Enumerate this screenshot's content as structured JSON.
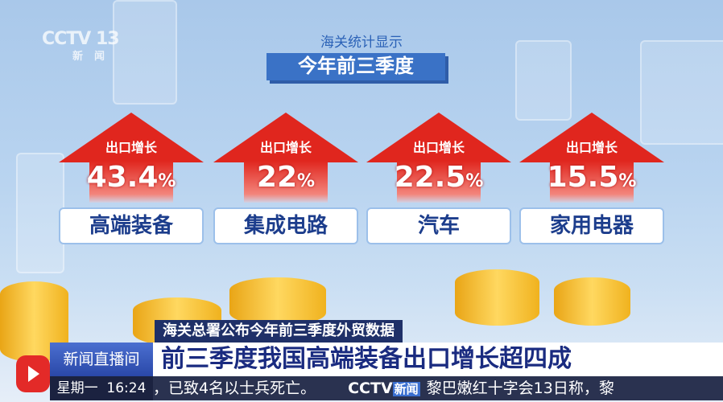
{
  "channel_logo": {
    "text": "CCTV 13",
    "sub": "新闻"
  },
  "header": {
    "line1": "海关统计显示",
    "line2": "今年前三季度"
  },
  "cards": [
    {
      "label": "出口增长",
      "value": "43.4",
      "unit": "%",
      "category": "高端装备"
    },
    {
      "label": "出口增长",
      "value": "22",
      "unit": "%",
      "category": "集成电路"
    },
    {
      "label": "出口增长",
      "value": "22.5",
      "unit": "%",
      "category": "汽车"
    },
    {
      "label": "出口增长",
      "value": "15.5",
      "unit": "%",
      "category": "家用电器"
    }
  ],
  "lower_third": {
    "subtitle": "海关总署公布今年前三季度外贸数据",
    "program": "新闻直播间",
    "headline": "前三季度我国高端装备出口增长超四成",
    "day": "星期一",
    "time": "16:24",
    "ticker_left": "，已致4名以士兵死亡。",
    "ticker_logo": "CCTV",
    "ticker_logo_sub": "新闻",
    "ticker_right": "黎巴嫩红十字会13日称，黎"
  },
  "colors": {
    "arrow": "#e0261e",
    "headline_text": "#1a2b80",
    "accent": "#3a72c6"
  }
}
